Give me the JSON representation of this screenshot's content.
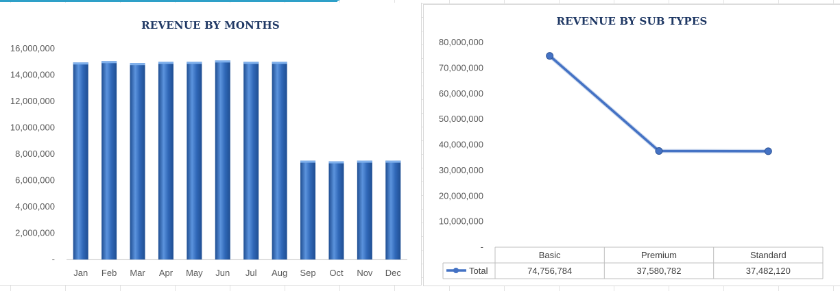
{
  "colors": {
    "bar_fill": "#3068b8",
    "bar_light": "#5b93dd",
    "bar_dark": "#1f4e92",
    "line": "#4472c4",
    "title": "#1f3864",
    "axis_text": "#595959",
    "accent": "#2ea0c8"
  },
  "chart_data": [
    {
      "type": "bar",
      "title": "REVENUE BY MONTHS",
      "xlabel": "",
      "ylabel": "",
      "categories": [
        "Jan",
        "Feb",
        "Mar",
        "Apr",
        "May",
        "Jun",
        "Jul",
        "Aug",
        "Sep",
        "Oct",
        "Nov",
        "Dec"
      ],
      "values": [
        14950000,
        15050000,
        14900000,
        15000000,
        15000000,
        15100000,
        15000000,
        15000000,
        7500000,
        7450000,
        7500000,
        7500000
      ],
      "ylim": [
        0,
        16000000
      ],
      "yticks": [
        0,
        2000000,
        4000000,
        6000000,
        8000000,
        10000000,
        12000000,
        14000000,
        16000000
      ],
      "ytick_labels": [
        "-",
        "2,000,000",
        "4,000,000",
        "6,000,000",
        "8,000,000",
        "10,000,000",
        "12,000,000",
        "14,000,000",
        "16,000,000"
      ],
      "grid": false,
      "legend": "none"
    },
    {
      "type": "line",
      "title": "REVENUE BY SUB TYPES",
      "xlabel": "",
      "ylabel": "",
      "categories": [
        "Basic",
        "Premium",
        "Standard"
      ],
      "series": [
        {
          "name": "Total",
          "values": [
            74756784,
            37580782,
            37482120
          ]
        }
      ],
      "value_labels": [
        "74,756,784",
        "37,580,782",
        "37,482,120"
      ],
      "ylim": [
        0,
        80000000
      ],
      "yticks": [
        0,
        10000000,
        20000000,
        30000000,
        40000000,
        50000000,
        60000000,
        70000000,
        80000000
      ],
      "ytick_labels": [
        "-",
        "10,000,000",
        "20,000,000",
        "30,000,000",
        "40,000,000",
        "50,000,000",
        "60,000,000",
        "70,000,000",
        "80,000,000"
      ],
      "grid": false,
      "legend": "data-table",
      "marker": "circle"
    }
  ]
}
